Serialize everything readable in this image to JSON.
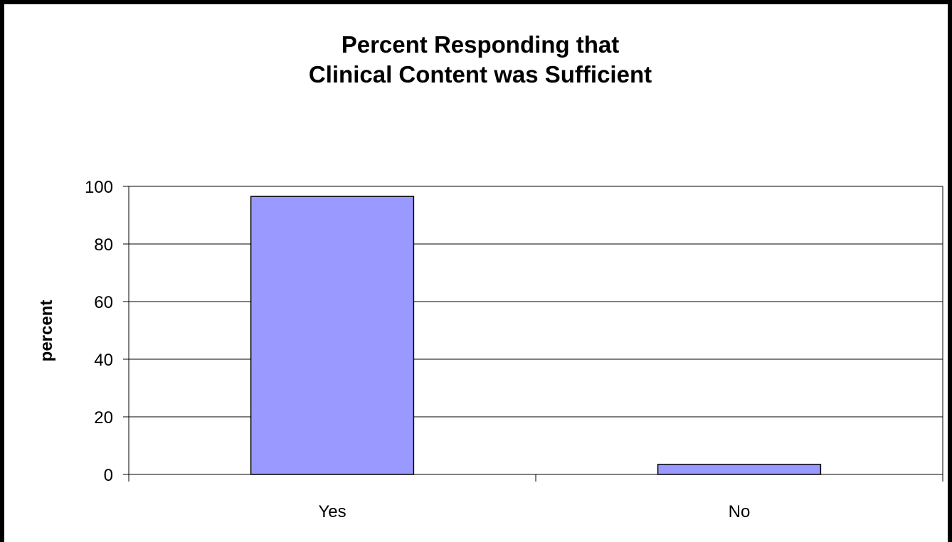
{
  "chart_data": {
    "type": "bar",
    "title_lines": [
      "Percent Responding that",
      "Clinical Content was Sufficient"
    ],
    "xlabel": "",
    "ylabel": "percent",
    "categories": [
      "Yes",
      "No"
    ],
    "values": [
      96.5,
      3.5
    ],
    "ylim": [
      0,
      100
    ],
    "yticks": [
      0,
      20,
      40,
      60,
      80,
      100
    ],
    "ytick_labels": [
      "0",
      "20",
      "40",
      "60",
      "80",
      "100"
    ],
    "grid": true,
    "legend": "none",
    "colors": {
      "bar_fill": "#9999ff",
      "bar_stroke": "#000000",
      "grid": "#000000",
      "axis": "#000000"
    }
  }
}
